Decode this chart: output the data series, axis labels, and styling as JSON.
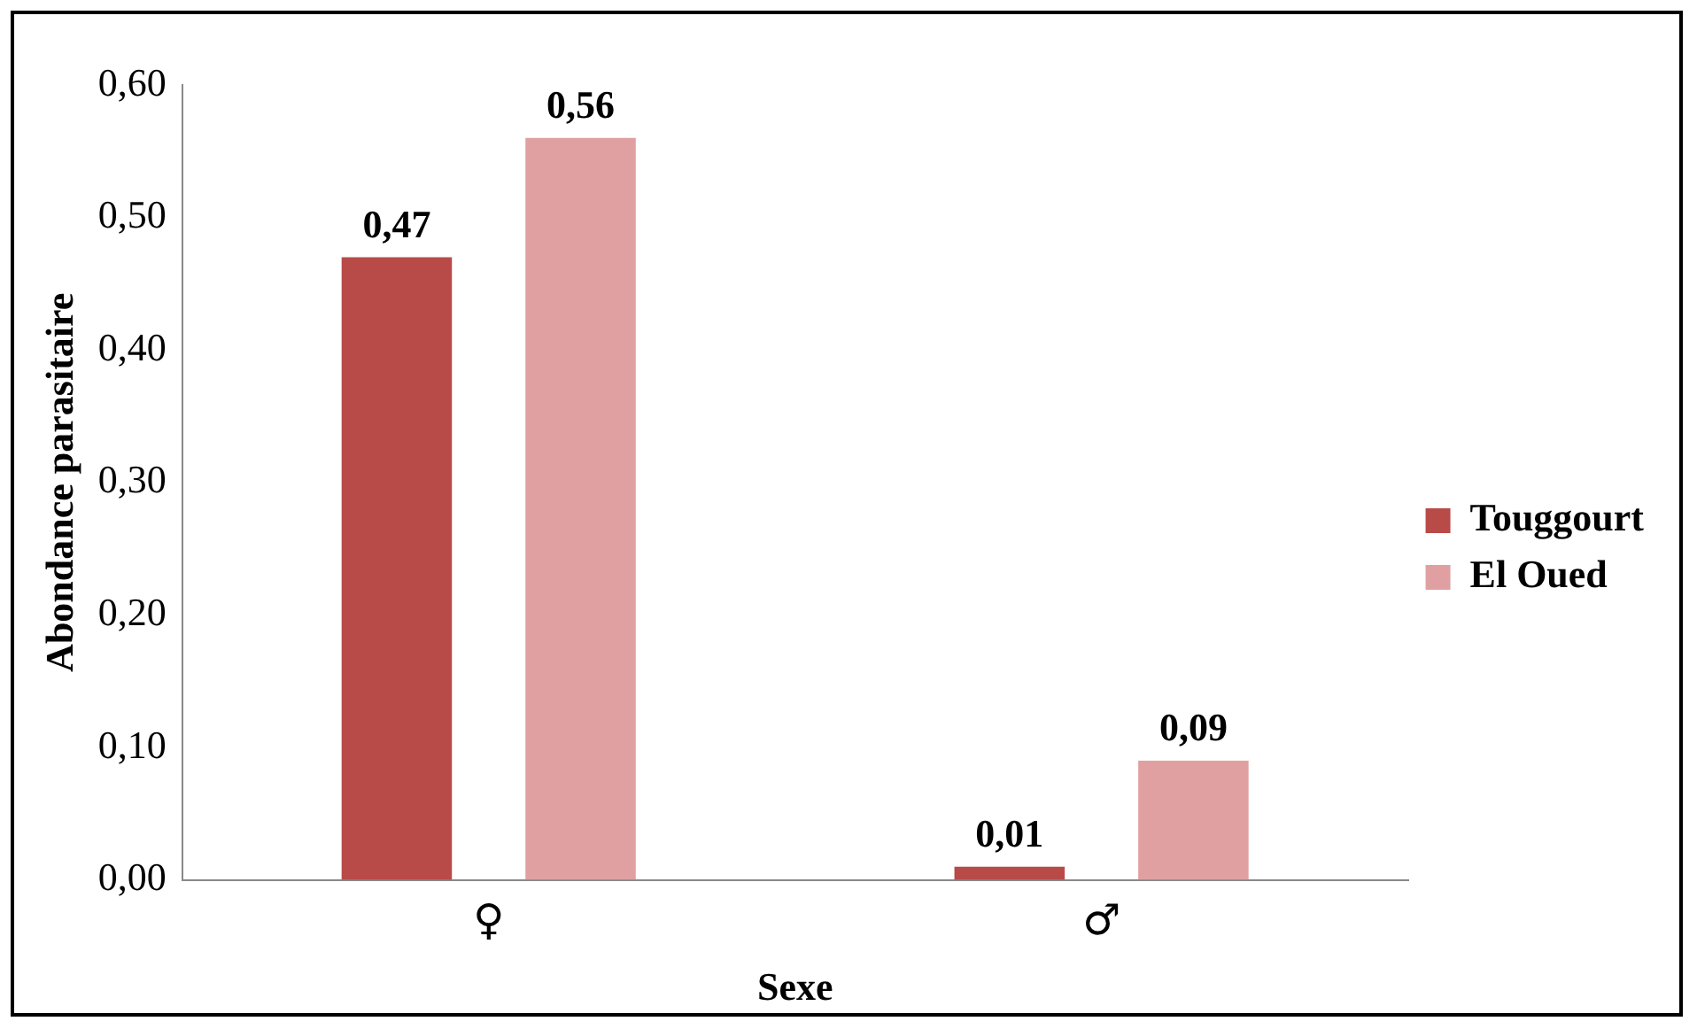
{
  "chart_data": {
    "type": "bar",
    "xlabel": "Sexe",
    "ylabel": "Abondance parasitaire",
    "categories": [
      "♀",
      "♂"
    ],
    "series": [
      {
        "name": "Touggourt",
        "color": "#b84a48",
        "values": [
          0.47,
          0.01
        ],
        "value_labels": [
          "0,47",
          "0,01"
        ]
      },
      {
        "name": "El Oued",
        "color": "#e0a0a2",
        "values": [
          0.56,
          0.09
        ],
        "value_labels": [
          "0,56",
          "0,09"
        ]
      }
    ],
    "ylim": [
      0,
      0.6
    ],
    "yticks": [
      {
        "value": 0,
        "label": "0,00"
      },
      {
        "value": 0.1,
        "label": "0,10"
      },
      {
        "value": 0.2,
        "label": "0,20"
      },
      {
        "value": 0.3,
        "label": "0,30"
      },
      {
        "value": 0.4,
        "label": "0,40"
      },
      {
        "value": 0.5,
        "label": "0,50"
      },
      {
        "value": 0.6,
        "label": "0,60"
      }
    ],
    "grid": false,
    "legend": "right"
  }
}
